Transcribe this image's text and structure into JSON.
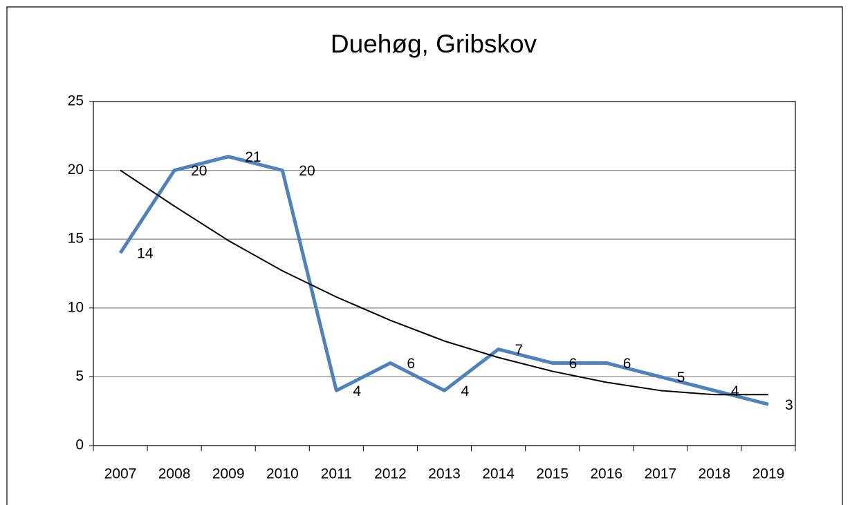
{
  "chart_data": {
    "type": "line",
    "title": "Duehøg, Gribskov",
    "categories": [
      "2007",
      "2008",
      "2009",
      "2010",
      "2011",
      "2012",
      "2013",
      "2014",
      "2015",
      "2016",
      "2017",
      "2018",
      "2019"
    ],
    "values": [
      14,
      20,
      21,
      20,
      4,
      6,
      4,
      7,
      6,
      6,
      5,
      4,
      3
    ],
    "color": "#4f81bd",
    "trendline": {
      "values": [
        20,
        17.4,
        14.9,
        12.7,
        10.8,
        9.1,
        7.6,
        6.4,
        5.4,
        4.6,
        4.0,
        3.7,
        3.7
      ],
      "color": "#000000"
    },
    "ylim": [
      0,
      25
    ],
    "yticks": [
      0,
      5,
      10,
      15,
      20,
      25
    ],
    "grid": true
  }
}
